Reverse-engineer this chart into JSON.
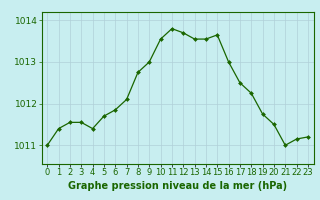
{
  "hours": [
    0,
    1,
    2,
    3,
    4,
    5,
    6,
    7,
    8,
    9,
    10,
    11,
    12,
    13,
    14,
    15,
    16,
    17,
    18,
    19,
    20,
    21,
    22,
    23
  ],
  "pressure": [
    1011.0,
    1011.4,
    1011.55,
    1011.55,
    1011.4,
    1011.7,
    1011.85,
    1012.1,
    1012.75,
    1013.0,
    1013.55,
    1013.8,
    1013.7,
    1013.55,
    1013.55,
    1013.65,
    1013.0,
    1012.5,
    1012.25,
    1011.75,
    1011.5,
    1011.0,
    1011.15,
    1011.2
  ],
  "line_color": "#1a6600",
  "marker_color": "#1a6600",
  "bg_color": "#c8eef0",
  "grid_color": "#b0d0d8",
  "xlabel": "Graphe pression niveau de la mer (hPa)",
  "xlabel_color": "#1a6600",
  "tick_color": "#1a6600",
  "spine_color": "#1a6600",
  "ylim": [
    1010.55,
    1014.2
  ],
  "yticks": [
    1011,
    1012,
    1013,
    1014
  ],
  "xlim": [
    -0.5,
    23.5
  ],
  "figure_bg": "#c8eef0",
  "font_size": 6.5,
  "xlabel_fontsize": 7.0,
  "linewidth": 0.9,
  "markersize": 2.0
}
